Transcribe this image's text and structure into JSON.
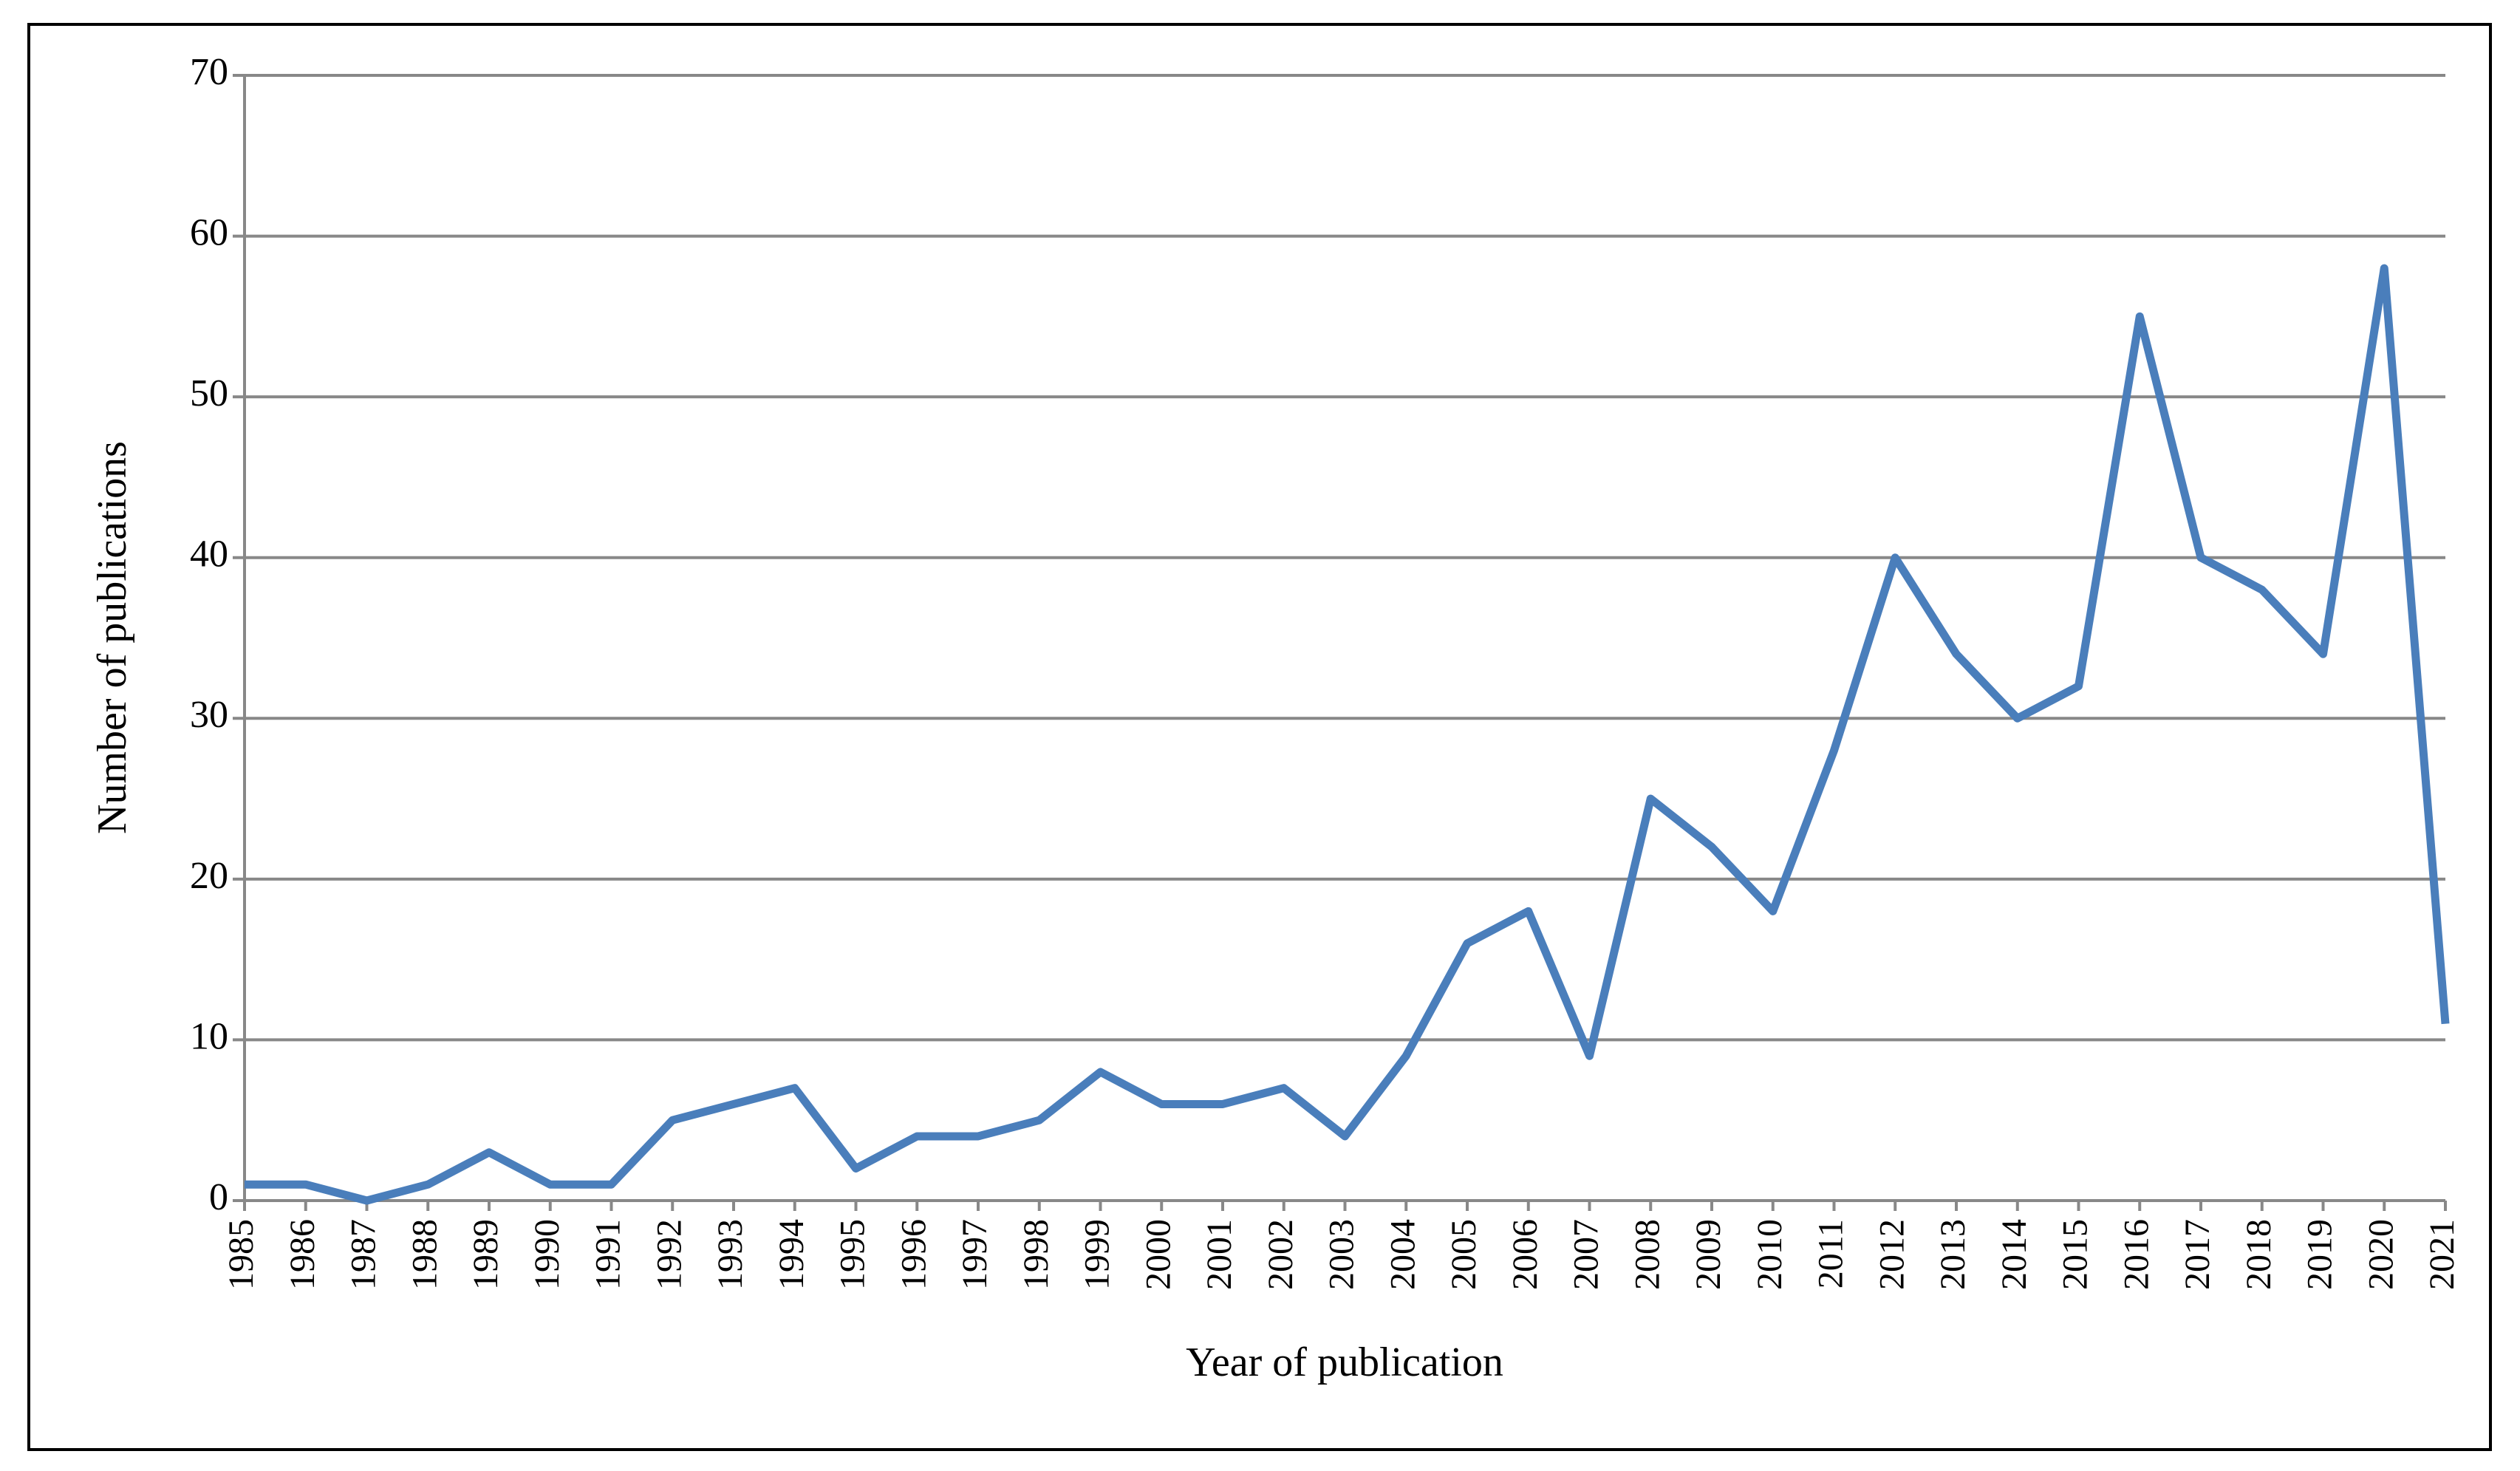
{
  "chart_data": {
    "type": "line",
    "x_label": "Year of publication",
    "y_label": "Number of publications",
    "categories": [
      "1985",
      "1986",
      "1987",
      "1988",
      "1989",
      "1990",
      "1991",
      "1992",
      "1993",
      "1994",
      "1995",
      "1996",
      "1997",
      "1998",
      "1999",
      "2000",
      "2001",
      "2002",
      "2003",
      "2004",
      "2005",
      "2006",
      "2007",
      "2008",
      "2009",
      "2010",
      "2011",
      "2012",
      "2013",
      "2014",
      "2015",
      "2016",
      "2017",
      "2018",
      "2019",
      "2020",
      "2021"
    ],
    "values": [
      1,
      1,
      0,
      1,
      3,
      1,
      1,
      5,
      6,
      7,
      2,
      4,
      4,
      5,
      8,
      6,
      6,
      7,
      4,
      9,
      16,
      18,
      9,
      25,
      22,
      18,
      28,
      40,
      34,
      30,
      32,
      55,
      40,
      38,
      34,
      58,
      11
    ],
    "color": "#4a7ebb",
    "ylim": [
      0,
      70
    ],
    "yticks": [
      0,
      10,
      20,
      30,
      40,
      50,
      60,
      70
    ],
    "grid": true
  }
}
